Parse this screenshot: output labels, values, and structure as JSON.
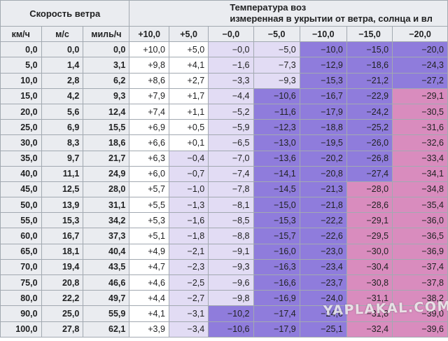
{
  "header": {
    "wind_group": "Скорость ветра",
    "temp_line1": "Температура воз",
    "temp_line2": "измеренная в укрытии от ветра, солнца и вл",
    "units": [
      "км/ч",
      "м/с",
      "миль/ч"
    ],
    "temps": [
      "+10,0",
      "+5,0",
      "−0,0",
      "−5,0",
      "−10,0",
      "−15,0",
      "−20,0"
    ]
  },
  "colors": {
    "header_bg": "#eaecf0",
    "white": "#ffffff",
    "light_lavender": "#e2dcf4",
    "medium_purple": "#8f7cdc",
    "pink": "#d98cbe",
    "border": "#a2a9b1"
  },
  "rows": [
    {
      "kmh": "0,0",
      "ms": "0,0",
      "mph": "0,0",
      "t": [
        "+10,0",
        "+5,0",
        "−0,0",
        "−5,0",
        "−10,0",
        "−15,0",
        "−20,0"
      ],
      "c": [
        "w",
        "w",
        "l",
        "l",
        "m",
        "m",
        "m"
      ]
    },
    {
      "kmh": "5,0",
      "ms": "1,4",
      "mph": "3,1",
      "t": [
        "+9,8",
        "+4,1",
        "−1,6",
        "−7,3",
        "−12,9",
        "−18,6",
        "−24,3"
      ],
      "c": [
        "w",
        "w",
        "l",
        "l",
        "m",
        "m",
        "m"
      ]
    },
    {
      "kmh": "10,0",
      "ms": "2,8",
      "mph": "6,2",
      "t": [
        "+8,6",
        "+2,7",
        "−3,3",
        "−9,3",
        "−15,3",
        "−21,2",
        "−27,2"
      ],
      "c": [
        "w",
        "w",
        "l",
        "l",
        "m",
        "m",
        "m"
      ]
    },
    {
      "kmh": "15,0",
      "ms": "4,2",
      "mph": "9,3",
      "t": [
        "+7,9",
        "+1,7",
        "−4,4",
        "−10,6",
        "−16,7",
        "−22,9",
        "−29,1"
      ],
      "c": [
        "w",
        "w",
        "l",
        "m",
        "m",
        "m",
        "p"
      ]
    },
    {
      "kmh": "20,0",
      "ms": "5,6",
      "mph": "12,4",
      "t": [
        "+7,4",
        "+1,1",
        "−5,2",
        "−11,6",
        "−17,9",
        "−24,2",
        "−30,5"
      ],
      "c": [
        "w",
        "w",
        "l",
        "m",
        "m",
        "m",
        "p"
      ]
    },
    {
      "kmh": "25,0",
      "ms": "6,9",
      "mph": "15,5",
      "t": [
        "+6,9",
        "+0,5",
        "−5,9",
        "−12,3",
        "−18,8",
        "−25,2",
        "−31,6"
      ],
      "c": [
        "w",
        "w",
        "l",
        "m",
        "m",
        "m",
        "p"
      ]
    },
    {
      "kmh": "30,0",
      "ms": "8,3",
      "mph": "18,6",
      "t": [
        "+6,6",
        "+0,1",
        "−6,5",
        "−13,0",
        "−19,5",
        "−26,0",
        "−32,6"
      ],
      "c": [
        "w",
        "w",
        "l",
        "m",
        "m",
        "m",
        "p"
      ]
    },
    {
      "kmh": "35,0",
      "ms": "9,7",
      "mph": "21,7",
      "t": [
        "+6,3",
        "−0,4",
        "−7,0",
        "−13,6",
        "−20,2",
        "−26,8",
        "−33,4"
      ],
      "c": [
        "w",
        "l",
        "l",
        "m",
        "m",
        "m",
        "p"
      ]
    },
    {
      "kmh": "40,0",
      "ms": "11,1",
      "mph": "24,9",
      "t": [
        "+6,0",
        "−0,7",
        "−7,4",
        "−14,1",
        "−20,8",
        "−27,4",
        "−34,1"
      ],
      "c": [
        "w",
        "l",
        "l",
        "m",
        "m",
        "m",
        "p"
      ]
    },
    {
      "kmh": "45,0",
      "ms": "12,5",
      "mph": "28,0",
      "t": [
        "+5,7",
        "−1,0",
        "−7,8",
        "−14,5",
        "−21,3",
        "−28,0",
        "−34,8"
      ],
      "c": [
        "w",
        "l",
        "l",
        "m",
        "m",
        "p",
        "p"
      ]
    },
    {
      "kmh": "50,0",
      "ms": "13,9",
      "mph": "31,1",
      "t": [
        "+5,5",
        "−1,3",
        "−8,1",
        "−15,0",
        "−21,8",
        "−28,6",
        "−35,4"
      ],
      "c": [
        "w",
        "l",
        "l",
        "m",
        "m",
        "p",
        "p"
      ]
    },
    {
      "kmh": "55,0",
      "ms": "15,3",
      "mph": "34,2",
      "t": [
        "+5,3",
        "−1,6",
        "−8,5",
        "−15,3",
        "−22,2",
        "−29,1",
        "−36,0"
      ],
      "c": [
        "w",
        "l",
        "l",
        "m",
        "m",
        "p",
        "p"
      ]
    },
    {
      "kmh": "60,0",
      "ms": "16,7",
      "mph": "37,3",
      "t": [
        "+5,1",
        "−1,8",
        "−8,8",
        "−15,7",
        "−22,6",
        "−29,5",
        "−36,5"
      ],
      "c": [
        "w",
        "l",
        "l",
        "m",
        "m",
        "p",
        "p"
      ]
    },
    {
      "kmh": "65,0",
      "ms": "18,1",
      "mph": "40,4",
      "t": [
        "+4,9",
        "−2,1",
        "−9,1",
        "−16,0",
        "−23,0",
        "−30,0",
        "−36,9"
      ],
      "c": [
        "w",
        "l",
        "l",
        "m",
        "m",
        "p",
        "p"
      ]
    },
    {
      "kmh": "70,0",
      "ms": "19,4",
      "mph": "43,5",
      "t": [
        "+4,7",
        "−2,3",
        "−9,3",
        "−16,3",
        "−23,4",
        "−30,4",
        "−37,4"
      ],
      "c": [
        "w",
        "l",
        "l",
        "m",
        "m",
        "p",
        "p"
      ]
    },
    {
      "kmh": "75,0",
      "ms": "20,8",
      "mph": "46,6",
      "t": [
        "+4,6",
        "−2,5",
        "−9,6",
        "−16,6",
        "−23,7",
        "−30,8",
        "−37,8"
      ],
      "c": [
        "w",
        "l",
        "l",
        "m",
        "m",
        "p",
        "p"
      ]
    },
    {
      "kmh": "80,0",
      "ms": "22,2",
      "mph": "49,7",
      "t": [
        "+4,4",
        "−2,7",
        "−9,8",
        "−16,9",
        "−24,0",
        "−31,1",
        "−38,2"
      ],
      "c": [
        "w",
        "l",
        "l",
        "m",
        "m",
        "p",
        "p"
      ]
    },
    {
      "kmh": "90,0",
      "ms": "25,0",
      "mph": "55,9",
      "t": [
        "+4,1",
        "−3,1",
        "−10,2",
        "−17,4",
        "−24,6",
        "−31,8",
        "−39,0"
      ],
      "c": [
        "w",
        "l",
        "m",
        "m",
        "m",
        "p",
        "p"
      ]
    },
    {
      "kmh": "100,0",
      "ms": "27,8",
      "mph": "62,1",
      "t": [
        "+3,9",
        "−3,4",
        "−10,6",
        "−17,9",
        "−25,1",
        "−32,4",
        "−39,6"
      ],
      "c": [
        "w",
        "l",
        "m",
        "m",
        "m",
        "p",
        "p"
      ]
    }
  ],
  "watermark": "YAPLAKAL.COM"
}
